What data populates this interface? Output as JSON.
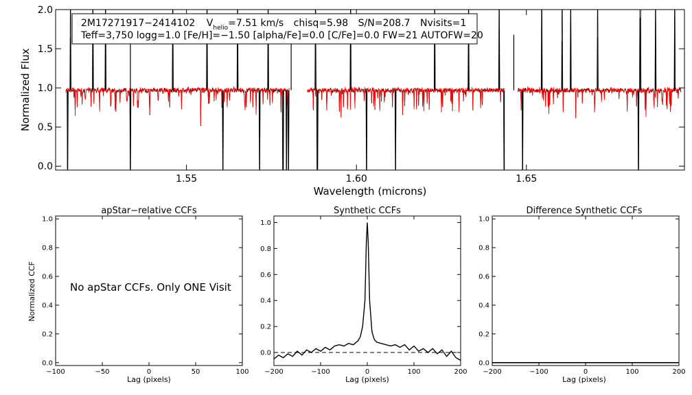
{
  "chart_data": [
    {
      "type": "line",
      "panel": "spectrum",
      "info_line1": {
        "star": "2M17271917−2414102",
        "v_prefix": "V",
        "v_sub": "helio",
        "v_rest": "=7.51 km/s",
        "chisq": "chisq=5.98",
        "sn": "S/N=208.7",
        "nvisits": "Nvisits=1"
      },
      "info_line2": "Teff=3,750 logg=1.0 [Fe/H]=−1.50 [alpha/Fe]=0.0 [C/Fe]=0.0 FW=21 AUTOFW=20",
      "xlabel": "Wavelength (microns)",
      "ylabel": "Normalized Flux",
      "xlim": [
        1.5115,
        1.6965
      ],
      "ylim": [
        -0.05,
        2.0
      ],
      "x_ticks": [
        1.55,
        1.6,
        1.65
      ],
      "x_tick_labels": [
        "1.55",
        "1.60",
        "1.65"
      ],
      "y_ticks": [
        0.0,
        0.5,
        1.0,
        1.5,
        2.0
      ],
      "y_tick_labels": [
        "0.0",
        "0.5",
        "1.0",
        "1.5",
        "2.0"
      ],
      "chips": [
        [
          1.5145,
          1.5802
        ],
        [
          1.5855,
          1.6435
        ],
        [
          1.6475,
          1.6955
        ]
      ],
      "series": [
        {
          "name": "observed",
          "color": "#000000"
        },
        {
          "name": "synthetic model",
          "color": "#ff0000"
        }
      ],
      "continuum": 0.97,
      "emission_spikes": [
        1.5159,
        1.5225,
        1.5262,
        1.5335,
        1.546,
        1.556,
        1.565,
        1.574,
        1.5808,
        1.588,
        1.5983,
        1.623,
        1.633,
        1.642,
        1.6463,
        1.6545,
        1.6605,
        1.663,
        1.671,
        1.6835,
        1.688,
        1.6936
      ],
      "deep_drops": [
        1.515,
        1.5335,
        1.5607,
        1.5715,
        1.5784,
        1.5794,
        1.58,
        1.5885,
        1.603,
        1.6115,
        1.6435,
        1.6489,
        1.683
      ]
    },
    {
      "type": "line",
      "panel": "apstar-ccf",
      "title": "apStar−relative CCFs",
      "ylabel": "Normalized CCF",
      "xlabel": "Lag (pixels)",
      "xlim": [
        -100,
        100
      ],
      "ylim": [
        -0.02,
        1.02
      ],
      "x_ticks": [
        -100,
        -50,
        0,
        50,
        100
      ],
      "x_tick_labels": [
        "−100",
        "−50",
        "0",
        "50",
        "100"
      ],
      "y_ticks": [
        0.0,
        0.2,
        0.4,
        0.6,
        0.8,
        1.0
      ],
      "y_tick_labels": [
        "0.0",
        "0.2",
        "0.4",
        "0.6",
        "0.8",
        "1.0"
      ],
      "annotation": "No apStar CCFs.  Only ONE Visit",
      "series": []
    },
    {
      "type": "line",
      "panel": "synthetic-ccf",
      "title": "Synthetic CCFs",
      "xlabel": "Lag (pixels)",
      "xlim": [
        -200,
        200
      ],
      "ylim": [
        -0.1,
        1.05
      ],
      "x_ticks": [
        -200,
        -100,
        0,
        100,
        200
      ],
      "x_tick_labels": [
        "−200",
        "−100",
        "0",
        "100",
        "200"
      ],
      "y_ticks": [
        0.0,
        0.2,
        0.4,
        0.6,
        0.8,
        1.0
      ],
      "y_tick_labels": [
        "0.0",
        "0.2",
        "0.4",
        "0.6",
        "0.8",
        "1.0"
      ],
      "zero_line": "dashed",
      "series": [
        {
          "name": "CCF",
          "x": [
            -200,
            -190,
            -180,
            -170,
            -160,
            -150,
            -140,
            -130,
            -120,
            -110,
            -100,
            -90,
            -80,
            -70,
            -60,
            -50,
            -40,
            -30,
            -20,
            -15,
            -10,
            -5,
            -2,
            0,
            2,
            5,
            10,
            15,
            20,
            30,
            40,
            50,
            60,
            70,
            80,
            90,
            100,
            110,
            120,
            130,
            140,
            150,
            160,
            170,
            180,
            190,
            200
          ],
          "y": [
            -0.05,
            -0.02,
            -0.04,
            -0.01,
            -0.03,
            0.01,
            -0.02,
            0.02,
            0.0,
            0.03,
            0.01,
            0.04,
            0.02,
            0.05,
            0.06,
            0.05,
            0.07,
            0.06,
            0.09,
            0.12,
            0.2,
            0.4,
            0.85,
            1.0,
            0.85,
            0.4,
            0.16,
            0.1,
            0.08,
            0.07,
            0.06,
            0.05,
            0.06,
            0.04,
            0.06,
            0.02,
            0.05,
            0.01,
            0.03,
            0.0,
            0.03,
            -0.01,
            0.02,
            -0.03,
            0.01,
            -0.04,
            -0.06
          ]
        }
      ]
    },
    {
      "type": "line",
      "panel": "difference-ccf",
      "title": "Difference Synthetic CCFs",
      "xlabel": "Lag (pixels)",
      "xlim": [
        -200,
        200
      ],
      "ylim": [
        -0.02,
        1.02
      ],
      "x_ticks": [
        -200,
        -100,
        0,
        100,
        200
      ],
      "x_tick_labels": [
        "−200",
        "−100",
        "0",
        "100",
        "200"
      ],
      "y_ticks": [
        0.0,
        0.2,
        0.4,
        0.6,
        0.8,
        1.0
      ],
      "y_tick_labels": [
        "0.0",
        "0.2",
        "0.4",
        "0.6",
        "0.8",
        "1.0"
      ],
      "series": [
        {
          "name": "difference",
          "x": [
            -200,
            200
          ],
          "y": [
            0.0,
            0.0
          ]
        }
      ]
    }
  ]
}
